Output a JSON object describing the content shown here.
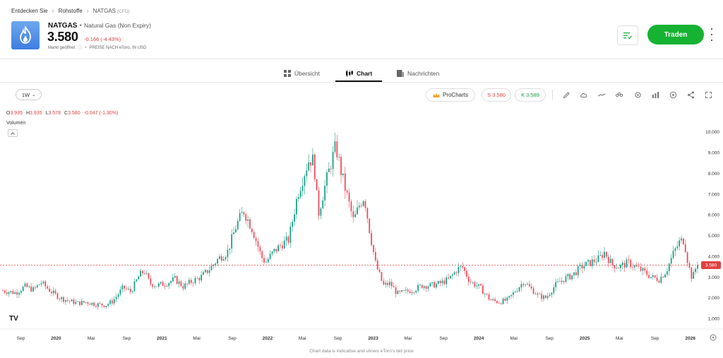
{
  "breadcrumb": {
    "items": [
      "Entdecken Sie",
      "Rohstoffe"
    ],
    "current": "NATGAS",
    "current_suffix": "(CFD)"
  },
  "instrument": {
    "symbol": "NATGAS",
    "full_name": "Natural Gas (Non Expiry)",
    "price": "3.580",
    "change": "-0.166 (-4.43%)",
    "market_status": "Markt geöffnet",
    "price_note": "PREISE NACH eToro, IN USD",
    "logo_icon": "flame-icon"
  },
  "actions": {
    "trade_label": "Traden",
    "watch_icon": "watchlist-icon",
    "more_icon": "kebab-icon"
  },
  "tabs": [
    {
      "label": "Übersicht",
      "icon": "grid-icon",
      "active": false
    },
    {
      "label": "Chart",
      "icon": "candles-icon",
      "active": true
    },
    {
      "label": "Nachrichten",
      "icon": "news-icon",
      "active": false
    }
  ],
  "toolbar": {
    "timeframe": "1W",
    "prochart_label": "ProCharts",
    "sell_label": "S 3.580",
    "buy_label": "K 3.589",
    "tools": [
      "pencil-icon",
      "cloud-icon",
      "line-icon",
      "indicators-icon",
      "settings-icon",
      "bars-icon",
      "plus-circle-icon",
      "share-icon",
      "expand-icon"
    ]
  },
  "ohlc": {
    "o": "3.935",
    "h": "3.935",
    "l": "3.578",
    "c": "3.580",
    "chg": "-0.047 (-1.30%)"
  },
  "volume_label": "Volumen",
  "tv_logo": "TV",
  "footer": "Chart data is indicative and shows eToro's bid price",
  "colors": {
    "up": "#1a9f86",
    "down": "#ee4b5a",
    "accent_green": "#16b232",
    "price_line": "#e04040"
  },
  "chart_data": {
    "type": "candlestick",
    "interval": "1W",
    "y_ticks": [
      "1.000",
      "2.000",
      "3.000",
      "4.000",
      "5.000",
      "6.000",
      "7.000",
      "8.000",
      "9.000",
      "10.000"
    ],
    "y_range": [
      0.5,
      10.3
    ],
    "x_labels": [
      "Sep",
      "2020",
      "Mai",
      "Sep",
      "2021",
      "Mai",
      "Sep",
      "2022",
      "Mai",
      "Sep",
      "2023",
      "Mai",
      "Sep",
      "2024",
      "Mai",
      "Sep",
      "2025",
      "Mai",
      "Sep",
      "2026"
    ],
    "x_bold": [
      "2020",
      "2021",
      "2022",
      "2023",
      "2024",
      "2025",
      "2026"
    ],
    "x_range": [
      "2019-07-01",
      "2026-01-31"
    ],
    "last_price": "3.580",
    "last_price_value": 3.58,
    "trend": [
      [
        "2019-07-01",
        2.35
      ],
      [
        "2019-08-15",
        2.25
      ],
      [
        "2019-09-15",
        2.55
      ],
      [
        "2019-10-15",
        2.4
      ],
      [
        "2019-11-10",
        2.75
      ],
      [
        "2019-12-15",
        2.3
      ],
      [
        "2020-01-15",
        2.0
      ],
      [
        "2020-02-15",
        1.85
      ],
      [
        "2020-03-15",
        1.75
      ],
      [
        "2020-04-15",
        1.8
      ],
      [
        "2020-05-15",
        1.7
      ],
      [
        "2020-06-20",
        1.65
      ],
      [
        "2020-07-15",
        1.85
      ],
      [
        "2020-08-20",
        2.5
      ],
      [
        "2020-09-15",
        2.3
      ],
      [
        "2020-10-15",
        3.1
      ],
      [
        "2020-11-01",
        3.3
      ],
      [
        "2020-11-20",
        2.7
      ],
      [
        "2020-12-15",
        2.6
      ],
      [
        "2021-01-15",
        2.7
      ],
      [
        "2021-02-15",
        2.9
      ],
      [
        "2021-03-15",
        2.55
      ],
      [
        "2021-04-15",
        2.8
      ],
      [
        "2021-05-15",
        3.0
      ],
      [
        "2021-06-15",
        3.4
      ],
      [
        "2021-07-15",
        3.9
      ],
      [
        "2021-08-15",
        4.2
      ],
      [
        "2021-09-15",
        5.5
      ],
      [
        "2021-10-10",
        6.2
      ],
      [
        "2021-11-10",
        5.3
      ],
      [
        "2021-12-10",
        4.0
      ],
      [
        "2021-12-25",
        3.7
      ],
      [
        "2022-01-20",
        4.2
      ],
      [
        "2022-02-20",
        4.6
      ],
      [
        "2022-03-15",
        4.8
      ],
      [
        "2022-04-15",
        7.0
      ],
      [
        "2022-05-10",
        8.1
      ],
      [
        "2022-05-25",
        8.7
      ],
      [
        "2022-06-10",
        8.6
      ],
      [
        "2022-06-25",
        6.0
      ],
      [
        "2022-07-15",
        7.2
      ],
      [
        "2022-08-10",
        8.6
      ],
      [
        "2022-08-25",
        9.3
      ],
      [
        "2022-09-15",
        7.9
      ],
      [
        "2022-10-05",
        6.8
      ],
      [
        "2022-10-25",
        5.7
      ],
      [
        "2022-11-15",
        6.5
      ],
      [
        "2022-12-01",
        6.9
      ],
      [
        "2022-12-20",
        5.2
      ],
      [
        "2023-01-10",
        3.6
      ],
      [
        "2023-02-05",
        2.6
      ],
      [
        "2023-03-01",
        2.7
      ],
      [
        "2023-03-25",
        2.2
      ],
      [
        "2023-04-25",
        2.3
      ],
      [
        "2023-05-20",
        2.4
      ],
      [
        "2023-06-20",
        2.6
      ],
      [
        "2023-07-20",
        2.6
      ],
      [
        "2023-08-20",
        2.7
      ],
      [
        "2023-09-20",
        2.9
      ],
      [
        "2023-10-20",
        3.4
      ],
      [
        "2023-11-05",
        3.5
      ],
      [
        "2023-12-01",
        2.8
      ],
      [
        "2024-01-05",
        2.5
      ],
      [
        "2024-02-10",
        1.9
      ],
      [
        "2024-03-10",
        1.8
      ],
      [
        "2024-04-10",
        1.9
      ],
      [
        "2024-05-10",
        2.4
      ],
      [
        "2024-06-05",
        2.8
      ],
      [
        "2024-06-25",
        2.5
      ],
      [
        "2024-07-25",
        2.1
      ],
      [
        "2024-08-20",
        2.0
      ],
      [
        "2024-09-20",
        2.6
      ],
      [
        "2024-10-20",
        2.9
      ],
      [
        "2024-11-20",
        3.1
      ],
      [
        "2024-12-20",
        3.5
      ],
      [
        "2025-01-20",
        3.7
      ],
      [
        "2025-02-20",
        3.9
      ],
      [
        "2025-03-10",
        4.2
      ],
      [
        "2025-04-05",
        3.6
      ],
      [
        "2025-05-01",
        3.5
      ],
      [
        "2025-06-01",
        3.7
      ],
      [
        "2025-06-25",
        3.5
      ],
      [
        "2025-07-20",
        3.3
      ],
      [
        "2025-08-20",
        3.0
      ],
      [
        "2025-09-15",
        2.9
      ],
      [
        "2025-10-10",
        3.3
      ],
      [
        "2025-11-05",
        4.2
      ],
      [
        "2025-11-25",
        4.7
      ],
      [
        "2025-12-10",
        4.8
      ],
      [
        "2025-12-25",
        3.6
      ],
      [
        "2026-01-08",
        2.9
      ],
      [
        "2026-01-18",
        3.4
      ],
      [
        "2026-01-31",
        3.58
      ]
    ]
  }
}
